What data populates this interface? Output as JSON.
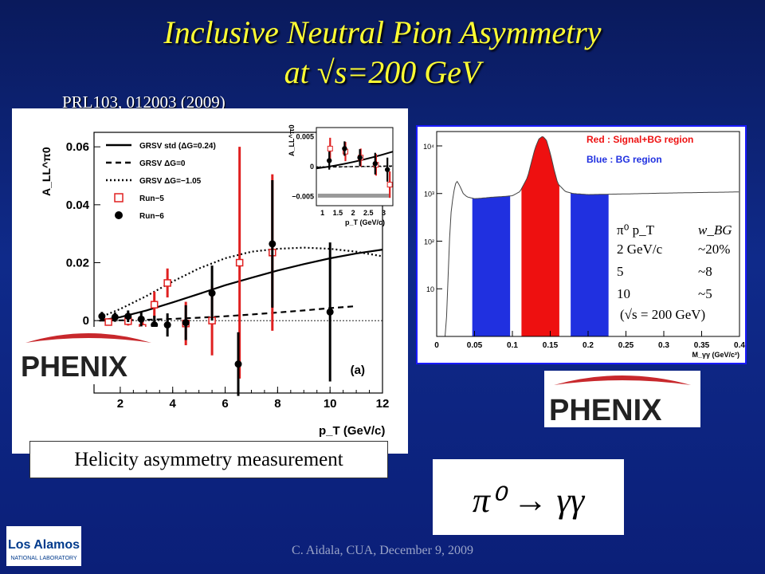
{
  "slide": {
    "title_line1": "Inclusive Neutral Pion Asymmetry",
    "title_line2_pre": "at ",
    "title_line2_sqrt": "√",
    "title_line2_post": "s=200 GeV",
    "reference": "PRL103, 012003 (2009)",
    "caption": "Helicity asymmetry measurement",
    "footer": "C. Aidala, CUA, December 9, 2009",
    "equation": "π⁰ → γγ",
    "phenix_logo_text": "PHENIX",
    "lanl_logo_text": "Los Alamos",
    "lanl_logo_sub": "NATIONAL LABORATORY"
  },
  "chart_data": [
    {
      "type": "scatter",
      "xlabel": "p_T (GeV/c)",
      "ylabel": "A_LL^π0",
      "panel_label": "(a)",
      "xlim": [
        1,
        12
      ],
      "ylim": [
        -0.025,
        0.065
      ],
      "xticks": [
        "2",
        "4",
        "6",
        "8",
        "10",
        "12"
      ],
      "yticks": [
        "0",
        "0.02",
        "0.04",
        "0.06"
      ],
      "legend": [
        "GRSV std (ΔG=0.24)",
        "GRSV ΔG=0",
        "GRSV ΔG=−1.05",
        "Run−5",
        "Run−6"
      ],
      "curves": [
        {
          "name": "GRSV std (ΔG=0.24)",
          "style": "solid",
          "x": [
            1.2,
            2,
            3,
            4,
            5,
            6,
            7,
            8,
            9,
            10,
            11,
            12
          ],
          "y": [
            0.0,
            0.0012,
            0.0035,
            0.0063,
            0.0092,
            0.0122,
            0.0148,
            0.0173,
            0.0195,
            0.0215,
            0.0232,
            0.0245
          ]
        },
        {
          "name": "GRSV ΔG=0",
          "style": "dashed",
          "x": [
            1.2,
            2,
            3,
            4,
            5,
            6,
            7,
            8,
            9,
            10,
            11
          ],
          "y": [
            0.0,
            0.0001,
            0.0003,
            0.0006,
            0.001,
            0.0015,
            0.0021,
            0.0028,
            0.0035,
            0.0043,
            0.005
          ]
        },
        {
          "name": "GRSV ΔG=−1.05",
          "style": "dotted",
          "x": [
            1.2,
            2,
            3,
            4,
            5,
            6,
            7,
            8,
            9,
            10,
            11,
            12
          ],
          "y": [
            0.001,
            0.004,
            0.0085,
            0.0135,
            0.018,
            0.0215,
            0.0238,
            0.0248,
            0.0252,
            0.0248,
            0.0238,
            0.0222
          ]
        }
      ],
      "series": [
        {
          "name": "Run−5",
          "color": "#e02020",
          "points": [
            {
              "x": 1.55,
              "y": -0.0005,
              "err": 0.0012
            },
            {
              "x": 2.3,
              "y": -0.0002,
              "err": 0.0015
            },
            {
              "x": 2.85,
              "y": -0.0025,
              "err": 0.0022
            },
            {
              "x": 3.3,
              "y": 0.0055,
              "err": 0.0045
            },
            {
              "x": 3.8,
              "y": 0.013,
              "err": 0.005
            },
            {
              "x": 4.5,
              "y": -0.001,
              "err": 0.0075
            },
            {
              "x": 5.5,
              "y": 0.0,
              "err": 0.012
            },
            {
              "x": 6.55,
              "y": 0.02,
              "err": 0.04
            },
            {
              "x": 7.8,
              "y": 0.0235,
              "err": 0.027
            }
          ]
        },
        {
          "name": "Run−6",
          "color": "#000000",
          "points": [
            {
              "x": 1.3,
              "y": 0.0015,
              "err": 0.0015
            },
            {
              "x": 1.8,
              "y": 0.0012,
              "err": 0.0016
            },
            {
              "x": 2.3,
              "y": 0.0015,
              "err": 0.002
            },
            {
              "x": 2.8,
              "y": 0.0005,
              "err": 0.0025
            },
            {
              "x": 3.3,
              "y": -0.0015,
              "err": 0.0032
            },
            {
              "x": 3.8,
              "y": -0.0015,
              "err": 0.004
            },
            {
              "x": 4.5,
              "y": -0.0007,
              "err": 0.006
            },
            {
              "x": 5.5,
              "y": 0.0095,
              "err": 0.0095
            },
            {
              "x": 6.5,
              "y": -0.015,
              "err": 0.011
            },
            {
              "x": 7.8,
              "y": 0.0265,
              "err": 0.022
            },
            {
              "x": 10.0,
              "y": 0.003,
              "err": 0.024
            }
          ]
        }
      ],
      "inset": {
        "xlim": [
          0.8,
          3.3
        ],
        "ylim": [
          -0.0065,
          0.0065
        ],
        "xticks": [
          "1",
          "1.5",
          "2",
          "2.5",
          "3"
        ],
        "yticks": [
          "0.005",
          "0",
          "−0.005"
        ],
        "ylabel": "A_LL^π0",
        "xlabel": "p_T (GeV/c)",
        "run5": [
          {
            "x": 1.25,
            "y": 0.003,
            "err": 0.0018
          },
          {
            "x": 1.75,
            "y": 0.0025,
            "err": 0.0016
          },
          {
            "x": 2.25,
            "y": 0.0015,
            "err": 0.0015
          },
          {
            "x": 2.75,
            "y": 0.0003,
            "err": 0.0018
          },
          {
            "x": 3.2,
            "y": -0.003,
            "err": 0.0022
          }
        ],
        "run6": [
          {
            "x": 1.3,
            "y": 0.001,
            "err": 0.0015
          },
          {
            "x": 1.8,
            "y": 0.003,
            "err": 0.0012
          },
          {
            "x": 2.3,
            "y": 0.0015,
            "err": 0.0014
          },
          {
            "x": 2.8,
            "y": 0.0005,
            "err": 0.0018
          },
          {
            "x": 3.2,
            "y": -0.0005,
            "err": 0.002
          }
        ]
      }
    },
    {
      "type": "area",
      "yscale": "log",
      "xlabel": "M_γγ (GeV/c²)",
      "xlim": [
        0,
        0.4
      ],
      "ylim": [
        1,
        20000
      ],
      "xticks": [
        "0",
        "0.05",
        "0.1",
        "0.15",
        "0.2",
        "0.25",
        "0.3",
        "0.35",
        "0.4"
      ],
      "yticks": [
        "10",
        "10²",
        "10³",
        "10⁴"
      ],
      "legend": [
        "Red : Signal+BG region",
        "Blue : BG region"
      ],
      "regions": [
        {
          "name": "Blue : BG region",
          "color": "#2030e0",
          "x0": 0.047,
          "x1": 0.097
        },
        {
          "name": "Red : Signal+BG region",
          "color": "#ee1010",
          "x0": 0.112,
          "x1": 0.162
        },
        {
          "name": "Blue : BG region",
          "color": "#2030e0",
          "x0": 0.177,
          "x1": 0.227
        }
      ],
      "spectrum": {
        "x": [
          0.005,
          0.012,
          0.018,
          0.022,
          0.026,
          0.03,
          0.035,
          0.04,
          0.05,
          0.06,
          0.07,
          0.08,
          0.09,
          0.1,
          0.11,
          0.12,
          0.125,
          0.13,
          0.135,
          0.14,
          0.145,
          0.15,
          0.155,
          0.16,
          0.17,
          0.18,
          0.2,
          0.25,
          0.3,
          0.35,
          0.4
        ],
        "y": [
          1,
          1,
          300,
          1000,
          1900,
          1500,
          1000,
          850,
          780,
          800,
          830,
          850,
          870,
          900,
          1100,
          2200,
          4500,
          9000,
          14000,
          16000,
          13000,
          7000,
          3200,
          1600,
          1100,
          1000,
          950,
          980,
          1020,
          1050,
          1080
        ]
      },
      "table": {
        "header": [
          "π⁰ p_T",
          "w_BG"
        ],
        "rows": [
          [
            "2 GeV/c",
            "~20%"
          ],
          [
            "5",
            "~8"
          ],
          [
            "10",
            "~5"
          ]
        ],
        "note": "(√s = 200 GeV)"
      }
    }
  ]
}
